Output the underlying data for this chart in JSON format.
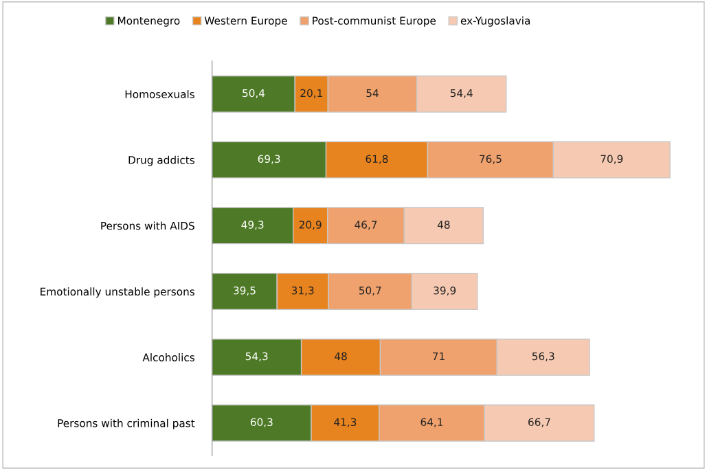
{
  "chart_data": {
    "type": "bar",
    "orientation": "horizontal",
    "stacked": true,
    "legend": "top",
    "grid": false,
    "tick_labels": "y",
    "categories": [
      "Homosexuals",
      "Drug addicts",
      "Persons with AIDS",
      "Emotionally unstable persons",
      "Alcoholics",
      "Persons with criminal past"
    ],
    "series": [
      {
        "name": "Montenegro",
        "color": "#4e7a27",
        "values": [
          50.4,
          69.3,
          49.3,
          39.5,
          54.3,
          60.3
        ],
        "value_labels": [
          "50,4",
          "69,3",
          "49,3",
          "39,5",
          "54,3",
          "60,3"
        ]
      },
      {
        "name": "Western Europe",
        "color": "#e8841f",
        "values": [
          20.1,
          61.8,
          20.9,
          31.3,
          48,
          41.3
        ],
        "value_labels": [
          "20,1",
          "61,8",
          "20,9",
          "31,3",
          "48",
          "41,3"
        ]
      },
      {
        "name": "Post-communist Europe",
        "color": "#f0a26e",
        "values": [
          54,
          76.5,
          46.7,
          50.7,
          71,
          64.1
        ],
        "value_labels": [
          "54",
          "76,5",
          "46,7",
          "50,7",
          "71",
          "64,1"
        ]
      },
      {
        "name": "ex-Yugoslavia",
        "color": "#f6cab2",
        "values": [
          54.4,
          70.9,
          48,
          39.9,
          56.3,
          66.7
        ],
        "value_labels": [
          "54,4",
          "70,9",
          "48",
          "39,9",
          "56,3",
          "66,7"
        ]
      }
    ]
  }
}
